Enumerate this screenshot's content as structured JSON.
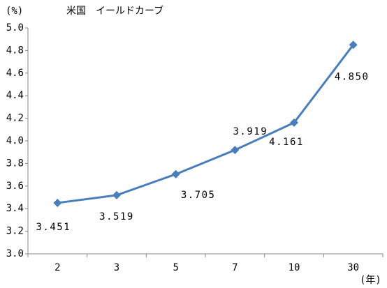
{
  "chart_data": {
    "type": "line",
    "title": "米国　イールドカーブ",
    "y_label": "(%)",
    "x_label": "(年)",
    "categories": [
      "2",
      "3",
      "5",
      "7",
      "10",
      "30"
    ],
    "series": [
      {
        "name": "米国",
        "color": "#4a7ebb",
        "values": [
          3.451,
          3.519,
          3.705,
          3.919,
          4.161,
          4.85
        ]
      }
    ],
    "value_labels": [
      "3.451",
      "3.519",
      "3.705",
      "3.919",
      "4.161",
      "4.850"
    ],
    "ylim": [
      3,
      5
    ],
    "yticks": [
      {
        "value": 3,
        "label": "3.0"
      },
      3.2,
      3.4,
      3.6,
      3.8,
      {
        "value": 4,
        "label": "4.0"
      },
      4.2,
      4.4,
      4.6,
      4.8,
      {
        "value": 5,
        "label": "5.0"
      }
    ],
    "grid": false
  }
}
